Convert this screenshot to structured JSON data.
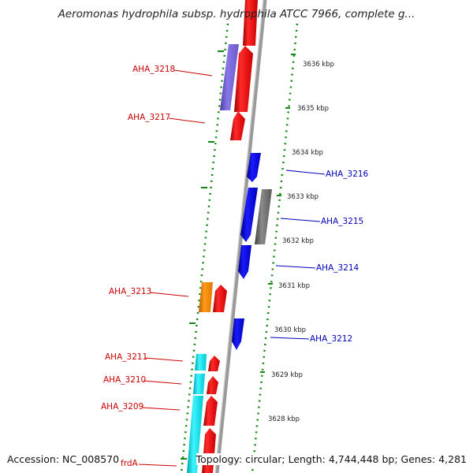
{
  "title": "Aeromonas hydrophila subsp. hydrophila ATCC 7966, complete g...",
  "footer": {
    "accession": "Accession: NC_008570",
    "summary": "Topology: circular; Length: 4,744,448 bp; Genes: 4,281"
  },
  "colors": {
    "red_gene": "#ff0000",
    "blue_gene": "#0000ee",
    "purple_gene": "#7b68d8",
    "orange_gene": "#ff8c00",
    "cyan_gene": "#00e5ee",
    "gray_gene": "#707070",
    "backbone": "#9a9a9a",
    "tick": "#118811",
    "left_label": "#cc0000",
    "right_label": "#0000bb"
  },
  "kbp_ticks": [
    "3636 kbp",
    "3635 kbp",
    "3634 kbp",
    "3633 kbp",
    "3632 kbp",
    "3631 kbp",
    "3630 kbp",
    "3629 kbp",
    "3628 kbp"
  ],
  "left_labels": [
    "AHA_3218",
    "AHA_3217",
    "AHA_3213",
    "AHA_3211",
    "AHA_3210",
    "AHA_3209",
    "frdA"
  ],
  "right_labels": [
    "AHA_3216",
    "AHA_3215",
    "AHA_3214",
    "AHA_3212"
  ]
}
